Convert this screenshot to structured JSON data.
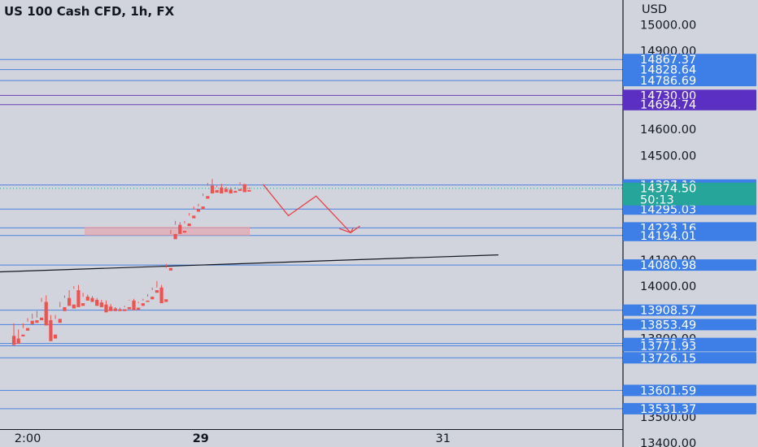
{
  "title": "US 100 Cash CFD, 1h, FX",
  "currency": "USD",
  "countdown": "50:13",
  "colors": {
    "background": "#d1d4dc",
    "up": "#26a69a",
    "down": "#ef5350",
    "level_line": "#4a82e0",
    "level_tag": "#3d7fe6",
    "zone_line": "#6a3fb8",
    "zone_tag": "#5a2fc2",
    "price_tag": "#26a69a",
    "forecast": "#e8424a",
    "trendline": "#131722",
    "zone_box": "#e8a0a8"
  },
  "chart_data": {
    "type": "candlestick",
    "ylim": [
      13385,
      15095
    ],
    "xlim": [
      -3,
      132
    ],
    "y_ticks": [
      15000,
      14900,
      14600,
      14500,
      14100,
      14000,
      13800,
      13500,
      13400
    ],
    "y_tick_labels": [
      "15000.00",
      "14900.00",
      "14600.00",
      "14500.00",
      "14100.00",
      "14000.00",
      "13800.00",
      "13500.00",
      "13400.00"
    ],
    "x_ticks": [
      {
        "x": 3,
        "label": "2:00"
      },
      {
        "x": 40.5,
        "label": "29"
      },
      {
        "x": 93,
        "label": "31"
      }
    ],
    "levels": [
      14867.37,
      14828.64,
      14786.69,
      14295.03,
      14223.16,
      14194.01,
      14080.98,
      13908.57,
      13853.49,
      13780.95,
      13771.93,
      13726.15,
      13601.59,
      13531.37
    ],
    "level_labels": [
      "14867.37",
      "14828.64",
      "14786.69",
      "14295.03",
      "14223.16",
      "14194.01",
      "14080.98",
      "13908.57",
      "13853.49",
      "13780.95",
      "13771.93",
      "13726.15",
      "13601.59",
      "13531.37"
    ],
    "zone_levels": [
      14730.0,
      14694.74
    ],
    "zone_labels": [
      "14730.00",
      "14694.74"
    ],
    "current_price": 14374.5,
    "current_price_label": "14374.50",
    "high_price": 14387.1,
    "high_price_label": "14387.10",
    "demand_zone": {
      "x0": 15.5,
      "x1": 51,
      "y0": 14225,
      "y1": 14196
    },
    "trendline": {
      "x0": -3,
      "y0": 14055,
      "x1": 105,
      "y1": 14120
    },
    "forecast_path": [
      [
        54,
        14390
      ],
      [
        59.5,
        14270
      ],
      [
        65.5,
        14345
      ],
      [
        73,
        14205
      ],
      [
        75,
        14230
      ]
    ],
    "candles": [
      [
        0,
        13810,
        13858,
        13785,
        13775
      ],
      [
        1,
        13800,
        13835,
        13795,
        13780
      ],
      [
        2,
        13815,
        13858,
        13840,
        13808
      ],
      [
        3,
        13840,
        13878,
        13865,
        13830
      ],
      [
        4,
        13868,
        13895,
        13875,
        13855
      ],
      [
        5,
        13870,
        13905,
        13880,
        13860
      ],
      [
        6,
        13880,
        13955,
        13940,
        13870
      ],
      [
        7,
        13940,
        13965,
        13870,
        13850
      ],
      [
        8,
        13870,
        13890,
        13810,
        13790
      ],
      [
        9,
        13815,
        13890,
        13875,
        13800
      ],
      [
        10,
        13875,
        13940,
        13920,
        13860
      ],
      [
        11,
        13920,
        13965,
        13955,
        13905
      ],
      [
        12,
        13955,
        13985,
        13935,
        13925
      ],
      [
        13,
        13930,
        14000,
        13990,
        13915
      ],
      [
        14,
        13985,
        14005,
        13935,
        13920
      ],
      [
        15,
        13935,
        13975,
        13960,
        13925
      ],
      [
        16,
        13960,
        13968,
        13952,
        13945
      ],
      [
        17,
        13955,
        13962,
        13945,
        13940
      ],
      [
        18,
        13948,
        13955,
        13935,
        13925
      ],
      [
        19,
        13938,
        13948,
        13930,
        13920
      ],
      [
        20,
        13930,
        13945,
        13920,
        13900
      ],
      [
        21,
        13922,
        13932,
        13912,
        13905
      ],
      [
        22,
        13915,
        13920,
        13910,
        13905
      ],
      [
        23,
        13912,
        13918,
        13910,
        13905
      ],
      [
        24,
        13912,
        13925,
        13920,
        13905
      ],
      [
        25,
        13920,
        13948,
        13945,
        13912
      ],
      [
        26,
        13945,
        13952,
        13915,
        13908
      ],
      [
        27,
        13918,
        13940,
        13935,
        13910
      ],
      [
        28,
        13935,
        13952,
        13945,
        13925
      ],
      [
        29,
        13945,
        13970,
        13960,
        13940
      ],
      [
        30,
        13960,
        13995,
        13985,
        13950
      ],
      [
        31,
        13985,
        14020,
        13995,
        13975
      ],
      [
        32,
        13995,
        14005,
        13950,
        13935
      ],
      [
        33,
        13950,
        14085,
        14070,
        13940
      ],
      [
        34,
        14070,
        14215,
        14200,
        14060
      ],
      [
        35,
        14200,
        14250,
        14235,
        14180
      ],
      [
        36,
        14235,
        14245,
        14210,
        14200
      ],
      [
        37,
        14212,
        14250,
        14240,
        14205
      ],
      [
        38,
        14240,
        14280,
        14270,
        14230
      ],
      [
        39,
        14270,
        14305,
        14295,
        14260
      ],
      [
        40,
        14295,
        14315,
        14305,
        14285
      ],
      [
        41,
        14305,
        14355,
        14345,
        14295
      ],
      [
        42,
        14345,
        14395,
        14385,
        14335
      ],
      [
        43,
        14385,
        14410,
        14365,
        14355
      ],
      [
        44,
        14368,
        14385,
        14378,
        14358
      ],
      [
        45,
        14378,
        14392,
        14370,
        14355
      ],
      [
        46,
        14372,
        14380,
        14368,
        14360
      ],
      [
        47,
        14370,
        14378,
        14362,
        14355
      ],
      [
        48,
        14365,
        14378,
        14372,
        14358
      ],
      [
        49,
        14372,
        14398,
        14390,
        14365
      ],
      [
        50,
        14390,
        14392,
        14365,
        14360
      ],
      [
        51,
        14368,
        14378,
        14372,
        14362
      ]
    ]
  }
}
